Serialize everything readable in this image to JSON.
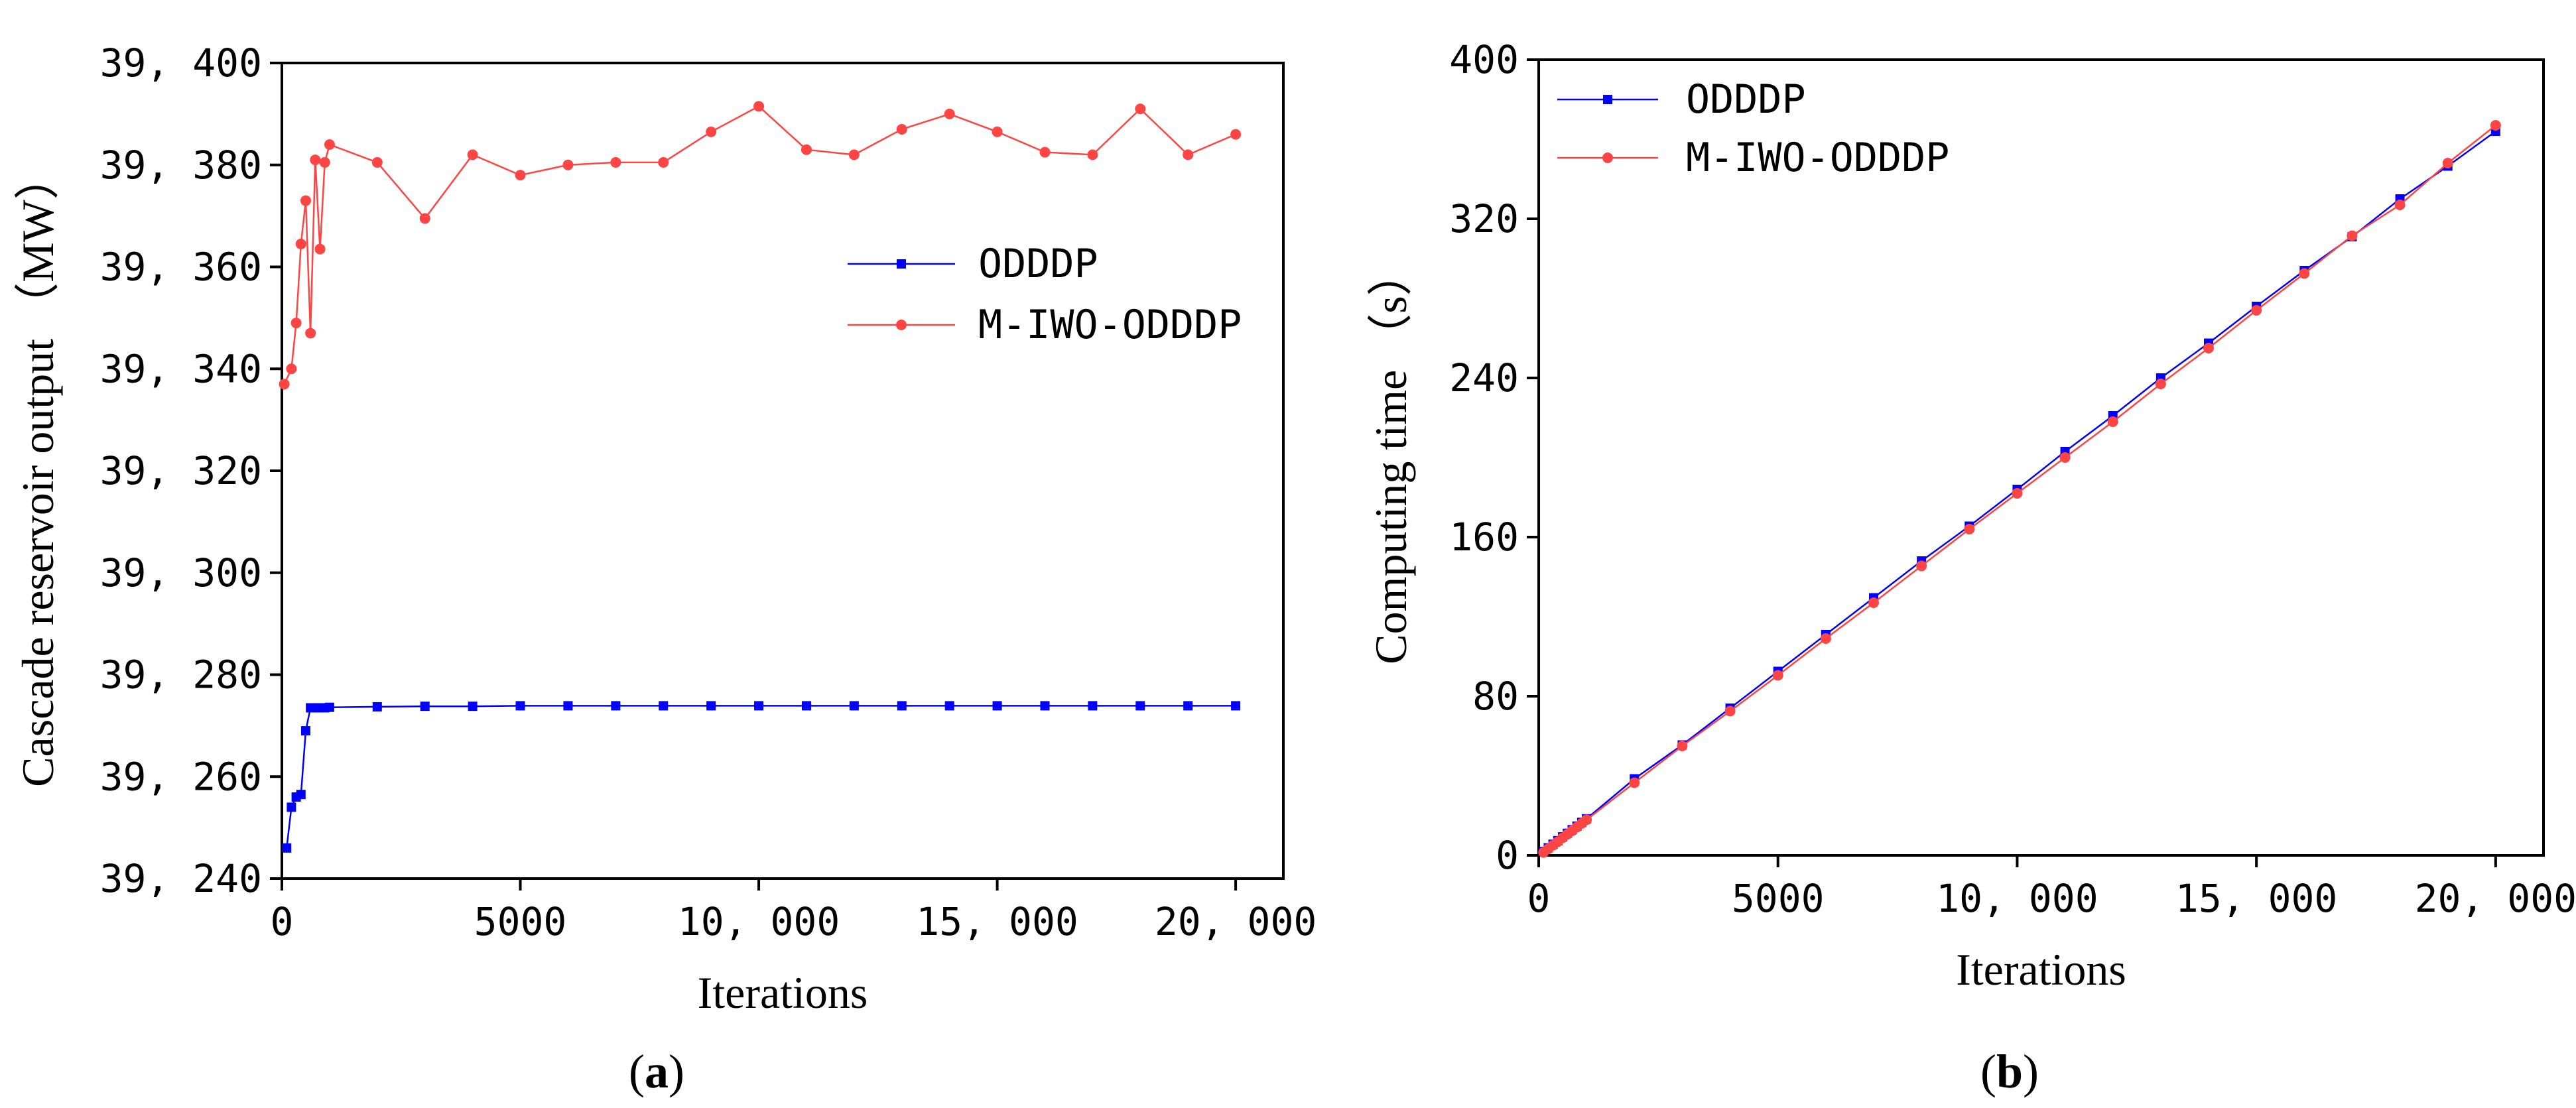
{
  "chart_data": [
    {
      "id": "a",
      "type": "line",
      "panel_label": "(a)",
      "panel_letter": "a",
      "xlabel": "Iterations",
      "ylabel": "Cascade reservoir output （MW）",
      "xlim": [
        0,
        21000
      ],
      "ylim": [
        39240,
        39400
      ],
      "xticks": [
        0,
        5000,
        10000,
        15000,
        20000
      ],
      "xtick_labels": [
        "0",
        "5000",
        "10, 000",
        "15, 000",
        "20, 000"
      ],
      "yticks": [
        39240,
        39260,
        39280,
        39300,
        39320,
        39340,
        39360,
        39380,
        39400
      ],
      "ytick_labels": [
        "39, 240",
        "39, 260",
        "39, 280",
        "39, 300",
        "39, 320",
        "39, 340",
        "39, 360",
        "39, 380",
        "39, 400"
      ],
      "legend_position": "right",
      "series": [
        {
          "name": "ODDDP",
          "color": "#0000ff",
          "marker": "square",
          "points": [
            [
              100,
              39246
            ],
            [
              200,
              39254
            ],
            [
              300,
              39256
            ],
            [
              400,
              39256.5
            ],
            [
              500,
              39269
            ],
            [
              600,
              39273.5
            ],
            [
              700,
              39273.5
            ],
            [
              800,
              39273.5
            ],
            [
              900,
              39273.5
            ],
            [
              1000,
              39273.6
            ],
            [
              2000,
              39273.7
            ],
            [
              3000,
              39273.8
            ],
            [
              4000,
              39273.8
            ],
            [
              5000,
              39273.9
            ],
            [
              6000,
              39273.9
            ],
            [
              7000,
              39273.9
            ],
            [
              8000,
              39273.9
            ],
            [
              9000,
              39273.9
            ],
            [
              10000,
              39273.9
            ],
            [
              11000,
              39273.9
            ],
            [
              12000,
              39273.9
            ],
            [
              13000,
              39273.9
            ],
            [
              14000,
              39273.9
            ],
            [
              15000,
              39273.9
            ],
            [
              16000,
              39273.9
            ],
            [
              17000,
              39273.9
            ],
            [
              18000,
              39273.9
            ],
            [
              19000,
              39273.9
            ],
            [
              20000,
              39273.9
            ]
          ]
        },
        {
          "name": "M-IWO-ODDDP",
          "color": "#ff4444",
          "marker": "circle",
          "points": [
            [
              50,
              39337
            ],
            [
              200,
              39340
            ],
            [
              300,
              39349
            ],
            [
              400,
              39364.5
            ],
            [
              500,
              39373
            ],
            [
              600,
              39347
            ],
            [
              700,
              39381
            ],
            [
              800,
              39363.5
            ],
            [
              900,
              39380.5
            ],
            [
              1000,
              39384
            ],
            [
              2000,
              39380.5
            ],
            [
              3000,
              39369.5
            ],
            [
              4000,
              39382
            ],
            [
              5000,
              39378
            ],
            [
              6000,
              39380
            ],
            [
              7000,
              39380.5
            ],
            [
              8000,
              39380.5
            ],
            [
              9000,
              39386.5
            ],
            [
              10000,
              39391.5
            ],
            [
              11000,
              39383
            ],
            [
              12000,
              39382
            ],
            [
              13000,
              39387
            ],
            [
              14000,
              39390
            ],
            [
              15000,
              39386.5
            ],
            [
              16000,
              39382.5
            ],
            [
              17000,
              39382
            ],
            [
              18000,
              39391
            ],
            [
              19000,
              39382
            ],
            [
              20000,
              39386
            ]
          ]
        }
      ]
    },
    {
      "id": "b",
      "type": "line",
      "panel_label": "(b)",
      "panel_letter": "b",
      "xlabel": "Iterations",
      "ylabel": "Computing time （s）",
      "xlim": [
        0,
        21000
      ],
      "ylim": [
        0,
        400
      ],
      "xticks": [
        0,
        5000,
        10000,
        15000,
        20000
      ],
      "xtick_labels": [
        "0",
        "5000",
        "10, 000",
        "15, 000",
        "20, 000"
      ],
      "yticks": [
        0,
        80,
        160,
        240,
        320,
        400
      ],
      "ytick_labels": [
        "0",
        "80",
        "160",
        "240",
        "320",
        "400"
      ],
      "legend_position": "top-left",
      "series": [
        {
          "name": "ODDDP",
          "color": "#0000ff",
          "marker": "square",
          "points": [
            [
              100,
              2
            ],
            [
              200,
              3.8
            ],
            [
              300,
              5.6
            ],
            [
              400,
              7.4
            ],
            [
              500,
              9.3
            ],
            [
              600,
              11.1
            ],
            [
              700,
              12.9
            ],
            [
              800,
              14.7
            ],
            [
              900,
              16.6
            ],
            [
              1000,
              18.4
            ],
            [
              2000,
              38.5
            ],
            [
              3000,
              55.5
            ],
            [
              4000,
              74
            ],
            [
              5000,
              92.5
            ],
            [
              6000,
              111
            ],
            [
              7000,
              129.5
            ],
            [
              8000,
              148
            ],
            [
              9000,
              165.5
            ],
            [
              10000,
              184
            ],
            [
              11000,
              203
            ],
            [
              12000,
              221
            ],
            [
              13000,
              240
            ],
            [
              14000,
              257.5
            ],
            [
              15000,
              276
            ],
            [
              16000,
              294
            ],
            [
              17000,
              311
            ],
            [
              18000,
              330
            ],
            [
              19000,
              346.5
            ],
            [
              20000,
              364
            ]
          ]
        },
        {
          "name": "M-IWO-ODDDP",
          "color": "#ff4444",
          "marker": "circle",
          "points": [
            [
              100,
              1.5
            ],
            [
              200,
              3.3
            ],
            [
              300,
              5.1
            ],
            [
              400,
              6.9
            ],
            [
              500,
              8.8
            ],
            [
              600,
              10.6
            ],
            [
              700,
              12.4
            ],
            [
              800,
              14.2
            ],
            [
              900,
              16.1
            ],
            [
              1000,
              17.9
            ],
            [
              2000,
              36.5
            ],
            [
              3000,
              55
            ],
            [
              4000,
              72.5
            ],
            [
              5000,
              90.5
            ],
            [
              6000,
              109
            ],
            [
              7000,
              127
            ],
            [
              8000,
              145.5
            ],
            [
              9000,
              164
            ],
            [
              10000,
              182
            ],
            [
              11000,
              200
            ],
            [
              12000,
              218
            ],
            [
              13000,
              237
            ],
            [
              14000,
              255
            ],
            [
              15000,
              274
            ],
            [
              16000,
              292.5
            ],
            [
              17000,
              311.5
            ],
            [
              18000,
              327
            ],
            [
              19000,
              348
            ],
            [
              20000,
              367
            ]
          ]
        }
      ]
    }
  ]
}
